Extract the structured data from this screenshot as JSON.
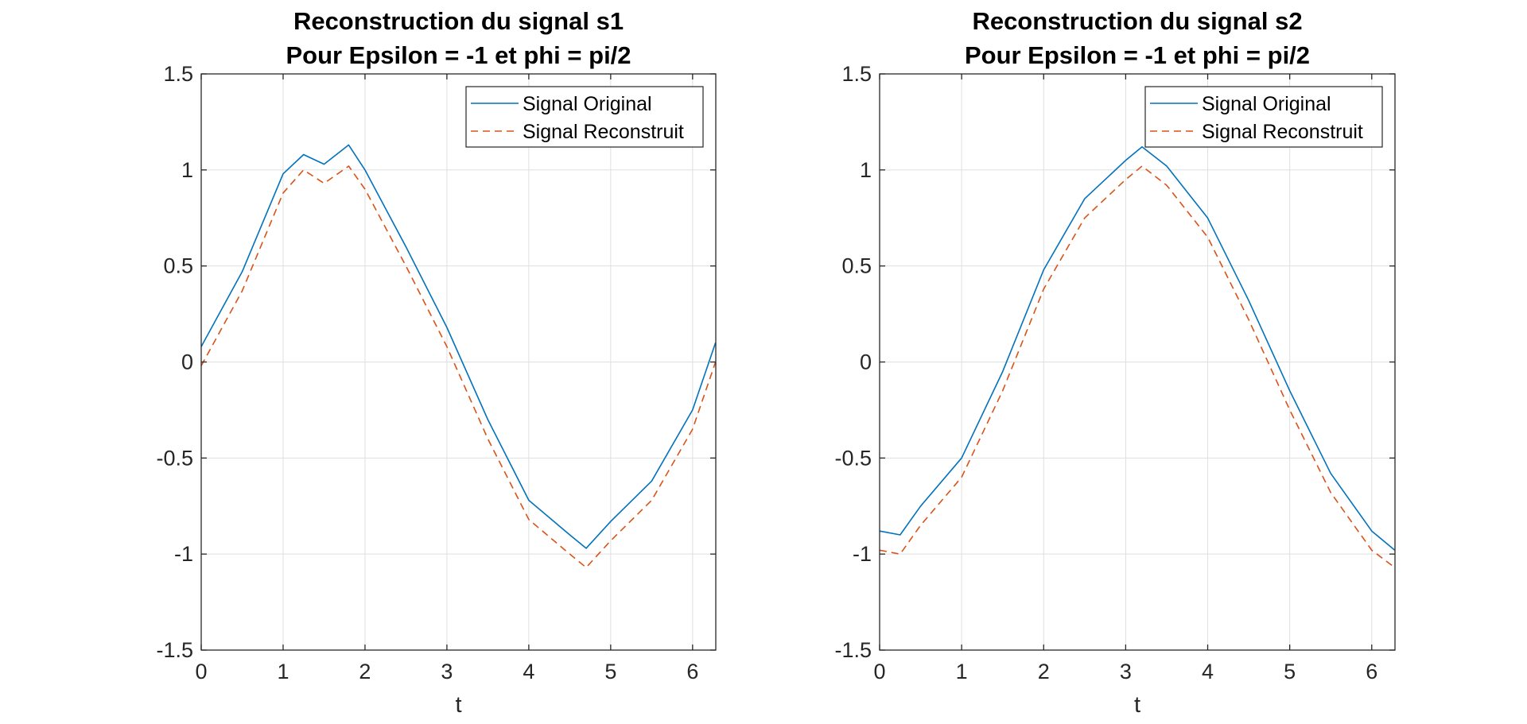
{
  "colors": {
    "original": "#0072BD",
    "reconstruit": "#D95319",
    "grid": "#dfdfdf",
    "axes": "#262626"
  },
  "chart_data": [
    {
      "type": "line",
      "title": [
        "Reconstruction du signal s1",
        "Pour Epsilon = -1 et phi = pi/2"
      ],
      "xlabel": "t",
      "ylabel": "",
      "xlim": [
        0,
        6.2832
      ],
      "ylim": [
        -1.5,
        1.5
      ],
      "xticks": [
        0,
        1,
        2,
        3,
        4,
        5,
        6
      ],
      "yticks": [
        -1.5,
        -1,
        -0.5,
        0,
        0.5,
        1,
        1.5
      ],
      "xtick_labels": [
        "0",
        "1",
        "2",
        "3",
        "4",
        "5",
        "6"
      ],
      "ytick_labels": [
        "-1.5",
        "-1",
        "-0.5",
        "0",
        "0.5",
        "1",
        "1.5"
      ],
      "grid": true,
      "legend_position": "top-right",
      "x": [
        0,
        0.5,
        1,
        1.25,
        1.5,
        1.8,
        2,
        2.5,
        3,
        3.5,
        4,
        4.5,
        4.7,
        5,
        5.5,
        6,
        6.28
      ],
      "series": [
        {
          "name": "Signal Original",
          "style": "solid",
          "color": "#0072BD",
          "values": [
            0.08,
            0.47,
            0.98,
            1.08,
            1.03,
            1.13,
            1.0,
            0.6,
            0.18,
            -0.3,
            -0.72,
            -0.9,
            -0.97,
            -0.83,
            -0.62,
            -0.25,
            0.1
          ]
        },
        {
          "name": "Signal Reconstruit",
          "style": "dashed",
          "color": "#D95319",
          "values": [
            -0.02,
            0.37,
            0.88,
            1.0,
            0.93,
            1.02,
            0.9,
            0.5,
            0.08,
            -0.4,
            -0.82,
            -1.0,
            -1.07,
            -0.93,
            -0.72,
            -0.35,
            0.0
          ]
        }
      ]
    },
    {
      "type": "line",
      "title": [
        "Reconstruction du signal s2",
        "Pour Epsilon = -1 et phi = pi/2"
      ],
      "xlabel": "t",
      "ylabel": "",
      "xlim": [
        0,
        6.2832
      ],
      "ylim": [
        -1.5,
        1.5
      ],
      "xticks": [
        0,
        1,
        2,
        3,
        4,
        5,
        6
      ],
      "yticks": [
        -1.5,
        -1,
        -0.5,
        0,
        0.5,
        1,
        1.5
      ],
      "xtick_labels": [
        "0",
        "1",
        "2",
        "3",
        "4",
        "5",
        "6"
      ],
      "ytick_labels": [
        "-1.5",
        "-1",
        "-0.5",
        "0",
        "0.5",
        "1",
        "1.5"
      ],
      "grid": true,
      "legend_position": "top-right",
      "x": [
        0,
        0.25,
        0.5,
        1,
        1.5,
        2,
        2.5,
        3,
        3.2,
        3.5,
        4,
        4.5,
        5,
        5.5,
        6,
        6.28
      ],
      "series": [
        {
          "name": "Signal Original",
          "style": "solid",
          "color": "#0072BD",
          "values": [
            -0.88,
            -0.9,
            -0.75,
            -0.5,
            -0.05,
            0.48,
            0.85,
            1.05,
            1.12,
            1.02,
            0.75,
            0.32,
            -0.15,
            -0.58,
            -0.88,
            -0.98
          ]
        },
        {
          "name": "Signal Reconstruit",
          "style": "dashed",
          "color": "#D95319",
          "values": [
            -0.98,
            -1.0,
            -0.85,
            -0.6,
            -0.15,
            0.38,
            0.75,
            0.95,
            1.02,
            0.92,
            0.65,
            0.22,
            -0.25,
            -0.68,
            -0.98,
            -1.07
          ]
        }
      ]
    }
  ]
}
